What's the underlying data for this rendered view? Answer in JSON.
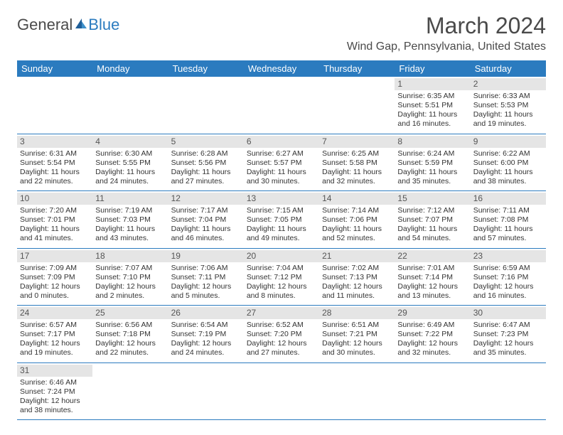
{
  "brand": {
    "part1": "General",
    "part2": "Blue"
  },
  "title": "March 2024",
  "location": "Wind Gap, Pennsylvania, United States",
  "colors": {
    "header_bg": "#2b7bbf",
    "header_text": "#ffffff",
    "daynum_bg": "#e5e5e5",
    "text": "#333333",
    "rule": "#2b7bbf"
  },
  "weekdays": [
    "Sunday",
    "Monday",
    "Tuesday",
    "Wednesday",
    "Thursday",
    "Friday",
    "Saturday"
  ],
  "weeks": [
    [
      null,
      null,
      null,
      null,
      null,
      {
        "n": "1",
        "sr": "Sunrise: 6:35 AM",
        "ss": "Sunset: 5:51 PM",
        "d1": "Daylight: 11 hours",
        "d2": "and 16 minutes."
      },
      {
        "n": "2",
        "sr": "Sunrise: 6:33 AM",
        "ss": "Sunset: 5:53 PM",
        "d1": "Daylight: 11 hours",
        "d2": "and 19 minutes."
      }
    ],
    [
      {
        "n": "3",
        "sr": "Sunrise: 6:31 AM",
        "ss": "Sunset: 5:54 PM",
        "d1": "Daylight: 11 hours",
        "d2": "and 22 minutes."
      },
      {
        "n": "4",
        "sr": "Sunrise: 6:30 AM",
        "ss": "Sunset: 5:55 PM",
        "d1": "Daylight: 11 hours",
        "d2": "and 24 minutes."
      },
      {
        "n": "5",
        "sr": "Sunrise: 6:28 AM",
        "ss": "Sunset: 5:56 PM",
        "d1": "Daylight: 11 hours",
        "d2": "and 27 minutes."
      },
      {
        "n": "6",
        "sr": "Sunrise: 6:27 AM",
        "ss": "Sunset: 5:57 PM",
        "d1": "Daylight: 11 hours",
        "d2": "and 30 minutes."
      },
      {
        "n": "7",
        "sr": "Sunrise: 6:25 AM",
        "ss": "Sunset: 5:58 PM",
        "d1": "Daylight: 11 hours",
        "d2": "and 32 minutes."
      },
      {
        "n": "8",
        "sr": "Sunrise: 6:24 AM",
        "ss": "Sunset: 5:59 PM",
        "d1": "Daylight: 11 hours",
        "d2": "and 35 minutes."
      },
      {
        "n": "9",
        "sr": "Sunrise: 6:22 AM",
        "ss": "Sunset: 6:00 PM",
        "d1": "Daylight: 11 hours",
        "d2": "and 38 minutes."
      }
    ],
    [
      {
        "n": "10",
        "sr": "Sunrise: 7:20 AM",
        "ss": "Sunset: 7:01 PM",
        "d1": "Daylight: 11 hours",
        "d2": "and 41 minutes."
      },
      {
        "n": "11",
        "sr": "Sunrise: 7:19 AM",
        "ss": "Sunset: 7:03 PM",
        "d1": "Daylight: 11 hours",
        "d2": "and 43 minutes."
      },
      {
        "n": "12",
        "sr": "Sunrise: 7:17 AM",
        "ss": "Sunset: 7:04 PM",
        "d1": "Daylight: 11 hours",
        "d2": "and 46 minutes."
      },
      {
        "n": "13",
        "sr": "Sunrise: 7:15 AM",
        "ss": "Sunset: 7:05 PM",
        "d1": "Daylight: 11 hours",
        "d2": "and 49 minutes."
      },
      {
        "n": "14",
        "sr": "Sunrise: 7:14 AM",
        "ss": "Sunset: 7:06 PM",
        "d1": "Daylight: 11 hours",
        "d2": "and 52 minutes."
      },
      {
        "n": "15",
        "sr": "Sunrise: 7:12 AM",
        "ss": "Sunset: 7:07 PM",
        "d1": "Daylight: 11 hours",
        "d2": "and 54 minutes."
      },
      {
        "n": "16",
        "sr": "Sunrise: 7:11 AM",
        "ss": "Sunset: 7:08 PM",
        "d1": "Daylight: 11 hours",
        "d2": "and 57 minutes."
      }
    ],
    [
      {
        "n": "17",
        "sr": "Sunrise: 7:09 AM",
        "ss": "Sunset: 7:09 PM",
        "d1": "Daylight: 12 hours",
        "d2": "and 0 minutes."
      },
      {
        "n": "18",
        "sr": "Sunrise: 7:07 AM",
        "ss": "Sunset: 7:10 PM",
        "d1": "Daylight: 12 hours",
        "d2": "and 2 minutes."
      },
      {
        "n": "19",
        "sr": "Sunrise: 7:06 AM",
        "ss": "Sunset: 7:11 PM",
        "d1": "Daylight: 12 hours",
        "d2": "and 5 minutes."
      },
      {
        "n": "20",
        "sr": "Sunrise: 7:04 AM",
        "ss": "Sunset: 7:12 PM",
        "d1": "Daylight: 12 hours",
        "d2": "and 8 minutes."
      },
      {
        "n": "21",
        "sr": "Sunrise: 7:02 AM",
        "ss": "Sunset: 7:13 PM",
        "d1": "Daylight: 12 hours",
        "d2": "and 11 minutes."
      },
      {
        "n": "22",
        "sr": "Sunrise: 7:01 AM",
        "ss": "Sunset: 7:14 PM",
        "d1": "Daylight: 12 hours",
        "d2": "and 13 minutes."
      },
      {
        "n": "23",
        "sr": "Sunrise: 6:59 AM",
        "ss": "Sunset: 7:16 PM",
        "d1": "Daylight: 12 hours",
        "d2": "and 16 minutes."
      }
    ],
    [
      {
        "n": "24",
        "sr": "Sunrise: 6:57 AM",
        "ss": "Sunset: 7:17 PM",
        "d1": "Daylight: 12 hours",
        "d2": "and 19 minutes."
      },
      {
        "n": "25",
        "sr": "Sunrise: 6:56 AM",
        "ss": "Sunset: 7:18 PM",
        "d1": "Daylight: 12 hours",
        "d2": "and 22 minutes."
      },
      {
        "n": "26",
        "sr": "Sunrise: 6:54 AM",
        "ss": "Sunset: 7:19 PM",
        "d1": "Daylight: 12 hours",
        "d2": "and 24 minutes."
      },
      {
        "n": "27",
        "sr": "Sunrise: 6:52 AM",
        "ss": "Sunset: 7:20 PM",
        "d1": "Daylight: 12 hours",
        "d2": "and 27 minutes."
      },
      {
        "n": "28",
        "sr": "Sunrise: 6:51 AM",
        "ss": "Sunset: 7:21 PM",
        "d1": "Daylight: 12 hours",
        "d2": "and 30 minutes."
      },
      {
        "n": "29",
        "sr": "Sunrise: 6:49 AM",
        "ss": "Sunset: 7:22 PM",
        "d1": "Daylight: 12 hours",
        "d2": "and 32 minutes."
      },
      {
        "n": "30",
        "sr": "Sunrise: 6:47 AM",
        "ss": "Sunset: 7:23 PM",
        "d1": "Daylight: 12 hours",
        "d2": "and 35 minutes."
      }
    ],
    [
      {
        "n": "31",
        "sr": "Sunrise: 6:46 AM",
        "ss": "Sunset: 7:24 PM",
        "d1": "Daylight: 12 hours",
        "d2": "and 38 minutes."
      },
      null,
      null,
      null,
      null,
      null,
      null
    ]
  ]
}
